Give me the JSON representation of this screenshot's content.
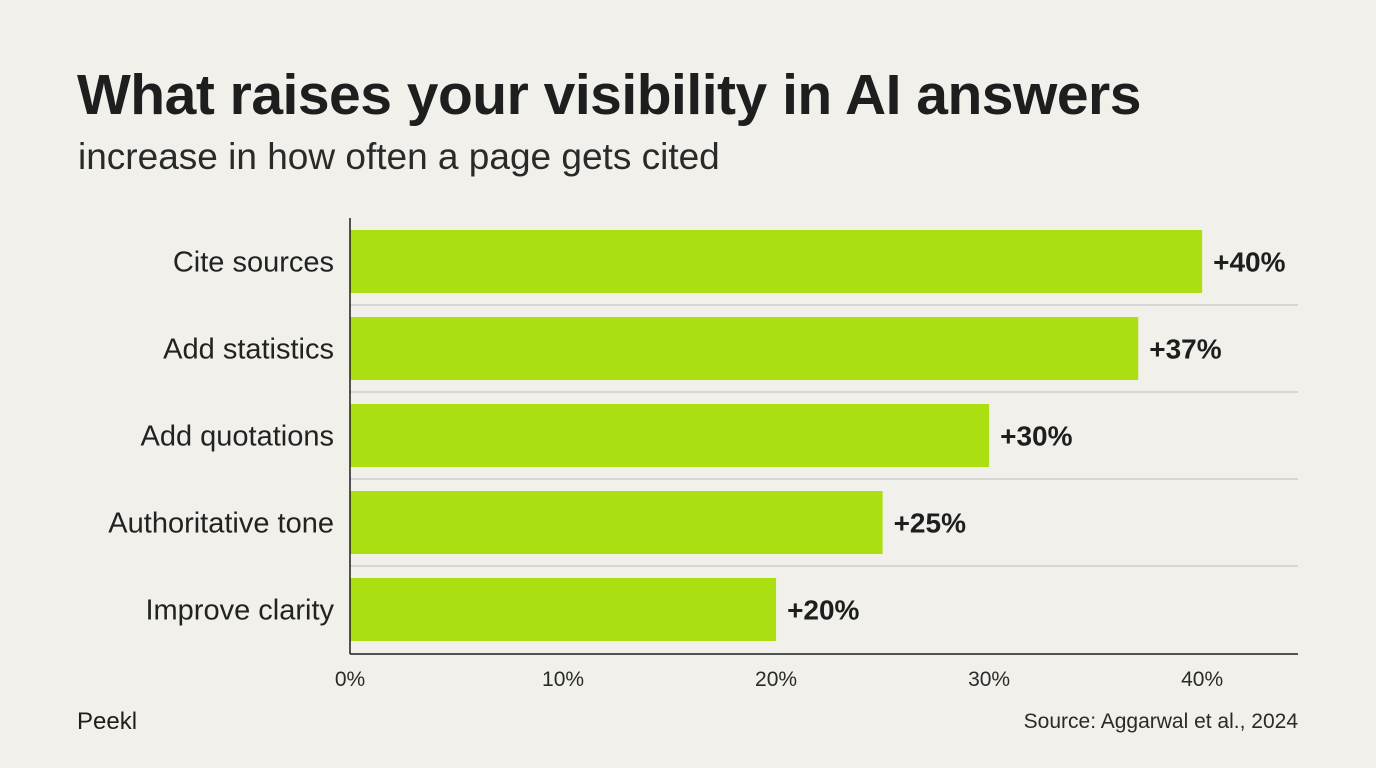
{
  "header": {
    "title": "What raises your visibility in AI answers",
    "subtitle": "increase in how often a page gets cited"
  },
  "footer": {
    "brand": "Peekl",
    "source": "Source: Aggarwal et al., 2024"
  },
  "colors": {
    "bar": "#acdf12",
    "background": "#f1f0eb",
    "axis": "#1e1e1e",
    "separator": "#bdbdbd"
  },
  "chart_data": {
    "type": "bar",
    "orientation": "horizontal",
    "title": "What raises your visibility in AI answers",
    "subtitle": "increase in how often a page gets cited",
    "categories": [
      "Cite sources",
      "Add statistics",
      "Add quotations",
      "Authoritative tone",
      "Improve clarity"
    ],
    "values": [
      40,
      37,
      30,
      25,
      20
    ],
    "value_labels": [
      "+40%",
      "+37%",
      "+30%",
      "+25%",
      "+20%"
    ],
    "xlabel": "",
    "ylabel": "",
    "xlim": [
      0,
      44.5
    ],
    "xticks": [
      0,
      10,
      20,
      30,
      40
    ],
    "xtick_labels": [
      "0%",
      "10%",
      "20%",
      "30%",
      "40%"
    ],
    "grid": false,
    "legend": "none"
  }
}
